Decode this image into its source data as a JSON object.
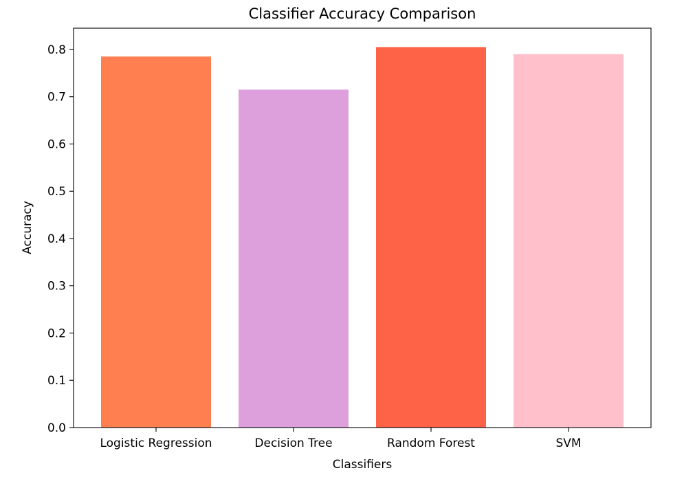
{
  "chart_data": {
    "type": "bar",
    "title": "Classifier Accuracy Comparison",
    "xlabel": "Classifiers",
    "ylabel": "Accuracy",
    "categories": [
      "Logistic Regression",
      "Decision Tree",
      "Random Forest",
      "SVM"
    ],
    "values": [
      0.785,
      0.715,
      0.805,
      0.79
    ],
    "colors": [
      "#ff7f50",
      "#dda0dd",
      "#ff6347",
      "#ffc0cb"
    ],
    "ylim": [
      0,
      0.845
    ],
    "yticks": [
      0.0,
      0.1,
      0.2,
      0.3,
      0.4,
      0.5,
      0.6,
      0.7,
      0.8
    ],
    "ytick_labels": [
      "0.0",
      "0.1",
      "0.2",
      "0.3",
      "0.4",
      "0.5",
      "0.6",
      "0.7",
      "0.8"
    ],
    "grid": false,
    "legend": "none"
  }
}
